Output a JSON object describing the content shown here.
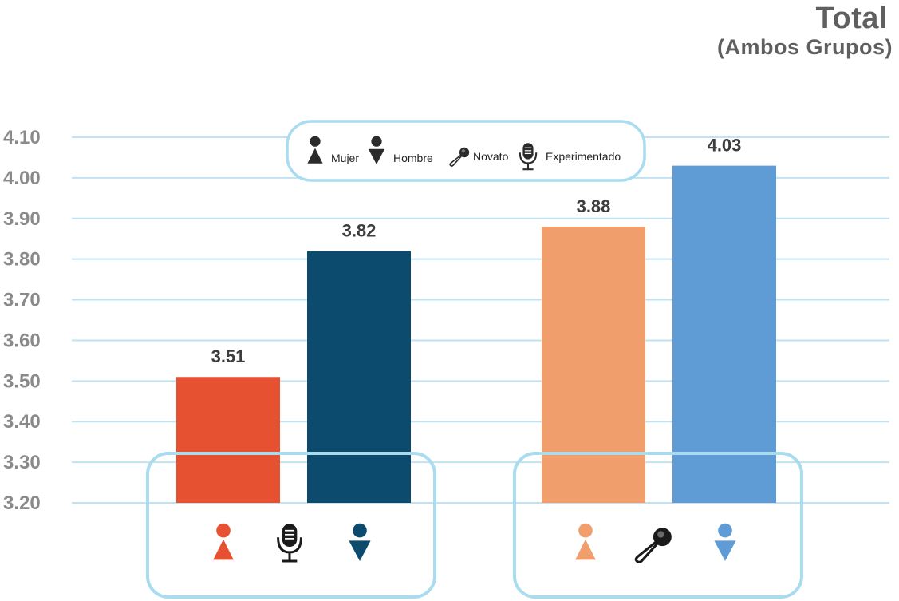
{
  "title": "Total",
  "subtitle": "(Ambos Grupos)",
  "legend": {
    "items": [
      {
        "label": "Mujer",
        "icon": "woman-icon"
      },
      {
        "label": "Hombre",
        "icon": "man-icon"
      },
      {
        "label": "Novato",
        "icon": "handheld-microphone-icon"
      },
      {
        "label": "Experimentado",
        "icon": "studio-microphone-icon"
      }
    ]
  },
  "colors": {
    "grid": "#bfe3f2",
    "frame": "#a9dcee",
    "tick": "#8a8a8a",
    "label": "#3d3d3d"
  },
  "chart_data": {
    "type": "bar",
    "title": "Total",
    "subtitle": "(Ambos Grupos)",
    "ylim": [
      3.2,
      4.1
    ],
    "yticks": [
      "3.20",
      "3.30",
      "3.40",
      "3.50",
      "3.60",
      "3.70",
      "3.80",
      "3.90",
      "4.00",
      "4.10"
    ],
    "grid": true,
    "legend_position": "top-center",
    "groups": [
      {
        "icon": "studio-microphone-icon",
        "category": "Experimentado"
      },
      {
        "icon": "handheld-microphone-icon",
        "category": "Novato"
      }
    ],
    "bars": [
      {
        "group": 0,
        "gender": "Mujer",
        "icon": "woman-icon",
        "value": 3.51,
        "label": "3.51",
        "color": "#e65131"
      },
      {
        "group": 0,
        "gender": "Hombre",
        "icon": "man-icon",
        "value": 3.82,
        "label": "3.82",
        "color": "#0c4a6e"
      },
      {
        "group": 1,
        "gender": "Mujer",
        "icon": "woman-icon",
        "value": 3.88,
        "label": "3.88",
        "color": "#f09e6b"
      },
      {
        "group": 1,
        "gender": "Hombre",
        "icon": "man-icon",
        "value": 4.03,
        "label": "4.03",
        "color": "#5f9bd5"
      }
    ]
  }
}
